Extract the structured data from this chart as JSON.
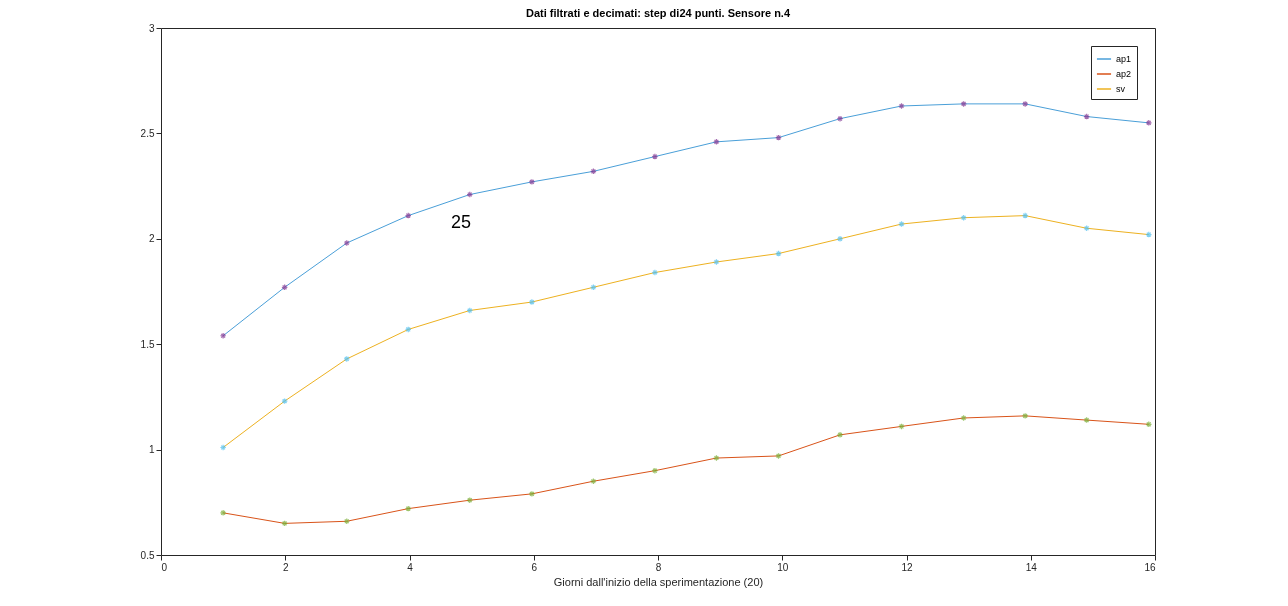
{
  "chart_data": {
    "type": "line",
    "title": "Dati filtrati e decimati: step di24 punti. Sensore n.4",
    "xlabel": "Giorni dall'inizio della sperimentazione (20)",
    "x": [
      1,
      1.99,
      2.99,
      3.98,
      4.97,
      5.97,
      6.96,
      7.95,
      8.94,
      9.94,
      10.93,
      11.92,
      12.92,
      13.91,
      14.9,
      15.9
    ],
    "series": [
      {
        "name": "ap1",
        "color": "#4a9fd8",
        "values": [
          1.54,
          1.77,
          1.98,
          2.11,
          2.21,
          2.27,
          2.32,
          2.39,
          2.46,
          2.48,
          2.57,
          2.63,
          2.64,
          2.64,
          2.58,
          2.55
        ]
      },
      {
        "name": "ap2",
        "color": "#d95319",
        "values": [
          0.7,
          0.65,
          0.66,
          0.72,
          0.76,
          0.79,
          0.85,
          0.9,
          0.96,
          0.97,
          1.07,
          1.11,
          1.15,
          1.16,
          1.14,
          1.12
        ]
      },
      {
        "name": "sv",
        "color": "#edb120",
        "values": [
          1.01,
          1.23,
          1.43,
          1.57,
          1.66,
          1.7,
          1.77,
          1.84,
          1.89,
          1.93,
          2.0,
          2.07,
          2.1,
          2.11,
          2.05,
          2.02
        ]
      },
      {
        "type": "scatter",
        "marker": "cross",
        "color": "#7e2f8e",
        "values": [
          1.54,
          1.77,
          1.98,
          2.11,
          2.21,
          2.27,
          2.32,
          2.39,
          2.46,
          2.48,
          2.57,
          2.63,
          2.64,
          2.64,
          2.58,
          2.55
        ]
      },
      {
        "type": "scatter",
        "marker": "cross",
        "color": "#77ac30",
        "values": [
          0.7,
          0.65,
          0.66,
          0.72,
          0.76,
          0.79,
          0.85,
          0.9,
          0.96,
          0.97,
          1.07,
          1.11,
          1.15,
          1.16,
          1.14,
          1.12
        ]
      },
      {
        "type": "scatter",
        "marker": "cross",
        "color": "#4dbeee",
        "values": [
          1.01,
          1.23,
          1.43,
          1.57,
          1.66,
          1.7,
          1.77,
          1.84,
          1.89,
          1.93,
          2.0,
          2.07,
          2.1,
          2.11,
          2.05,
          2.02
        ]
      }
    ],
    "xlim": [
      0,
      16
    ],
    "xticks": [
      0,
      2,
      4,
      6,
      8,
      10,
      12,
      14,
      16
    ],
    "ylim": [
      0.5,
      3
    ],
    "yticks": [
      0.5,
      1,
      1.5,
      2,
      2.5,
      3
    ],
    "grid": false,
    "legend": "top right",
    "annotations": [
      "25"
    ]
  }
}
